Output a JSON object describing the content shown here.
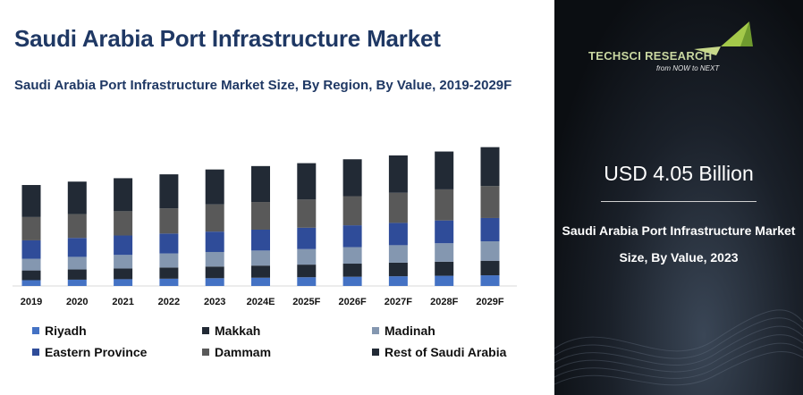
{
  "title": "Saudi Arabia Port Infrastructure Market",
  "subtitle": "Saudi Arabia Port Infrastructure Market Size, By Region, By Value, 2019-2029F",
  "logo": {
    "name": "TECHSCI RESEARCH",
    "tagline": "from NOW to NEXT"
  },
  "highlight": {
    "value": "USD 4.05 Billion",
    "description": "Saudi Arabia Port Infrastructure Market Size, By Value, 2023"
  },
  "chart_data": {
    "type": "bar",
    "stacked": true,
    "categories": [
      "2019",
      "2020",
      "2021",
      "2022",
      "2023",
      "2024E",
      "2025F",
      "2026F",
      "2027F",
      "2028F",
      "2029F"
    ],
    "series": [
      {
        "name": "Riyadh",
        "color": "#4472c4",
        "values": [
          6,
          6.5,
          7,
          7.5,
          8,
          8.5,
          9,
          9.5,
          10,
          10.5,
          11
        ]
      },
      {
        "name": "Makkah",
        "color": "#222a35",
        "values": [
          10,
          10.5,
          11,
          11.5,
          12,
          12.5,
          13,
          13.5,
          14,
          14.5,
          15
        ]
      },
      {
        "name": "Madinah",
        "color": "#8497b0",
        "values": [
          12,
          13,
          14,
          14.5,
          15,
          15.5,
          16,
          17,
          18,
          19,
          20
        ]
      },
      {
        "name": "Eastern Province",
        "color": "#2f4c99",
        "values": [
          19,
          19.5,
          20,
          20.5,
          21,
          21.5,
          22,
          22.5,
          23,
          23.5,
          24
        ]
      },
      {
        "name": "Dammam",
        "color": "#595959",
        "values": [
          24,
          24.5,
          25,
          26,
          28,
          28.5,
          29,
          30,
          31,
          32,
          33
        ]
      },
      {
        "name": "Rest of Saudi Arabia",
        "color": "#222a35",
        "values": [
          33,
          33.5,
          34,
          35,
          36,
          37,
          37.5,
          38,
          38.5,
          39,
          40
        ]
      }
    ]
  }
}
